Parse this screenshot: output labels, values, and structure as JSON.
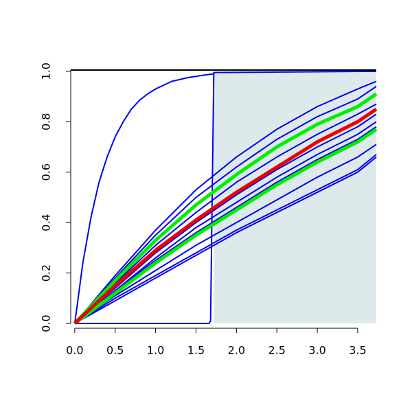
{
  "chart_data": {
    "type": "line",
    "xlim": [
      -0.05,
      3.73
    ],
    "ylim": [
      0,
      1.005
    ],
    "xticks": [
      {
        "value": 0,
        "label": "0.0"
      },
      0.5,
      {
        "value": 1,
        "label": "1.0"
      },
      1.5,
      {
        "value": 2,
        "label": "2.0"
      },
      2.5,
      {
        "value": 3,
        "label": "3.0"
      },
      3.5
    ],
    "yticks": [
      {
        "value": 0,
        "label": "0.0"
      },
      0.2,
      0.4,
      0.6,
      0.8,
      {
        "value": 1,
        "label": "1.0"
      }
    ],
    "shade_from": 1.72,
    "shade_color": "#dde9ea",
    "x": [
      0,
      0.5,
      1,
      1.5,
      2,
      2.5,
      3,
      3.5,
      3.73
    ],
    "series": [
      {
        "color": "#0000ee",
        "x": [
          0,
          0.1,
          0.2,
          0.3,
          0.4,
          0.5,
          0.6,
          0.7,
          0.8,
          0.9,
          1.0,
          1.2,
          1.4,
          1.6,
          1.72
        ],
        "values": [
          0,
          0.24,
          0.42,
          0.56,
          0.66,
          0.74,
          0.8,
          0.85,
          0.885,
          0.91,
          0.93,
          0.96,
          0.975,
          0.985,
          0.99
        ]
      },
      {
        "color": "#0000ee",
        "x": [
          0,
          1.66,
          1.68,
          1.7,
          1.72,
          3.73
        ],
        "values": [
          0,
          0,
          0.01,
          0.5,
          0.995,
          1.0
        ]
      },
      {
        "color": "#0000ee",
        "values": [
          0,
          0.19,
          0.37,
          0.53,
          0.66,
          0.77,
          0.86,
          0.93,
          0.96
        ]
      },
      {
        "color": "#0000ee",
        "values": [
          0,
          0.18,
          0.35,
          0.5,
          0.62,
          0.73,
          0.82,
          0.89,
          0.94
        ]
      },
      {
        "color": "#0000ee",
        "values": [
          0,
          0.16,
          0.31,
          0.44,
          0.56,
          0.66,
          0.75,
          0.83,
          0.87
        ]
      },
      {
        "color": "#0000ee",
        "values": [
          0,
          0.14,
          0.28,
          0.4,
          0.51,
          0.61,
          0.7,
          0.78,
          0.83
        ]
      },
      {
        "color": "#0000ee",
        "values": [
          0,
          0.13,
          0.26,
          0.38,
          0.48,
          0.58,
          0.67,
          0.75,
          0.8
        ]
      },
      {
        "color": "#0000ee",
        "values": [
          0,
          0.13,
          0.25,
          0.36,
          0.46,
          0.56,
          0.65,
          0.73,
          0.78
        ]
      },
      {
        "color": "#0000ee",
        "values": [
          0,
          0.11,
          0.21,
          0.31,
          0.4,
          0.49,
          0.58,
          0.66,
          0.71
        ]
      },
      {
        "color": "#0000ee",
        "values": [
          0,
          0.1,
          0.19,
          0.28,
          0.37,
          0.45,
          0.53,
          0.61,
          0.67
        ]
      },
      {
        "color": "#0000ee",
        "values": [
          0,
          0.09,
          0.18,
          0.27,
          0.36,
          0.44,
          0.52,
          0.6,
          0.66
        ]
      },
      {
        "color": "#00ee00",
        "emphasis": true,
        "values": [
          0,
          0.17,
          0.33,
          0.47,
          0.59,
          0.7,
          0.79,
          0.86,
          0.91
        ]
      },
      {
        "color": "#00ee00",
        "emphasis": true,
        "values": [
          0,
          0.12,
          0.24,
          0.35,
          0.45,
          0.55,
          0.64,
          0.72,
          0.77
        ]
      },
      {
        "color": "#ee0000",
        "emphasis": true,
        "values": [
          0,
          0.15,
          0.29,
          0.41,
          0.52,
          0.62,
          0.72,
          0.8,
          0.85
        ]
      }
    ]
  }
}
